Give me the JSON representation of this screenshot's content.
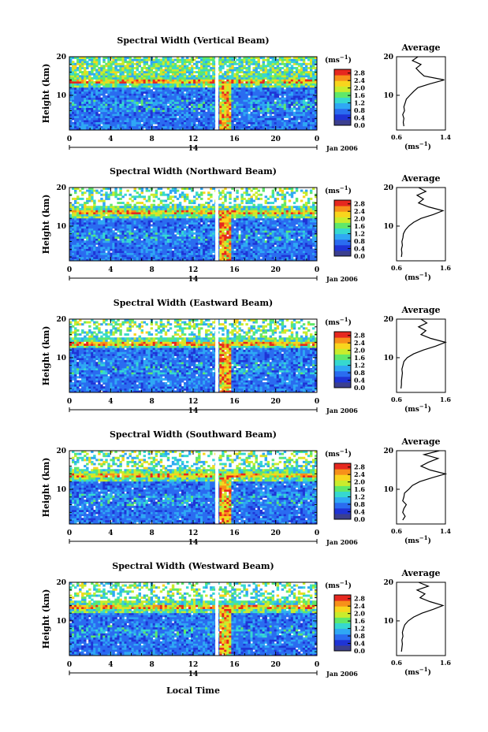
{
  "figure": {
    "xlabel": "Local Time",
    "date_label": "Jan 2006",
    "day_label": "14",
    "ylabel": "Height (km)",
    "colorbar_unit": "(ms",
    "colorbar_unit_sup": "−1",
    "profile_title": "Average",
    "profile_xunit": "(ms",
    "profile_xunit_sup": "−1",
    "profile_xunit_close": ")",
    "unit_close": ")"
  },
  "colorscale": {
    "ticks": [
      "0.0",
      "0.4",
      "0.8",
      "1.2",
      "1.6",
      "2.0",
      "2.4",
      "2.8"
    ],
    "colors": [
      "#3b3f8f",
      "#1f34d6",
      "#2a6cf0",
      "#2fa8f4",
      "#36d8d0",
      "#5fe86a",
      "#c9ec2c",
      "#f8d51d",
      "#f7901a",
      "#e6281f"
    ]
  },
  "chart_data": [
    {
      "type": "heatmap",
      "title": "Spectral Width (Vertical Beam)",
      "x_ticks": [
        "0",
        "4",
        "8",
        "12",
        "16",
        "20",
        "0"
      ],
      "xlim": [
        0,
        24
      ],
      "y_ticks": [
        "20",
        "10"
      ],
      "ylim": [
        1,
        20
      ],
      "z_unit": "ms-1",
      "zlim": [
        0.0,
        3.0
      ],
      "gap_hours": 14.3,
      "layer_km": 13.5,
      "profile": {
        "xticks": [
          "0.6",
          "1.4"
        ],
        "xlim": [
          0.6,
          1.4
        ],
        "points": [
          [
            0.72,
            2
          ],
          [
            0.71,
            3
          ],
          [
            0.72,
            4
          ],
          [
            0.7,
            5
          ],
          [
            0.73,
            6
          ],
          [
            0.72,
            7
          ],
          [
            0.74,
            8
          ],
          [
            0.76,
            9
          ],
          [
            0.82,
            10
          ],
          [
            0.88,
            11
          ],
          [
            0.95,
            12
          ],
          [
            1.15,
            13
          ],
          [
            1.38,
            14
          ],
          [
            1.05,
            15
          ],
          [
            0.98,
            16
          ],
          [
            0.92,
            17
          ],
          [
            1.0,
            18
          ],
          [
            0.86,
            19
          ],
          [
            0.95,
            20
          ]
        ]
      }
    },
    {
      "type": "heatmap",
      "title": "Spectral Width (Northward Beam)",
      "x_ticks": [
        "0",
        "4",
        "8",
        "12",
        "16",
        "20",
        "0"
      ],
      "xlim": [
        0,
        24
      ],
      "y_ticks": [
        "20",
        "10"
      ],
      "ylim": [
        1,
        20
      ],
      "z_unit": "ms-1",
      "zlim": [
        0.0,
        3.0
      ],
      "gap_hours": 14.3,
      "layer_km": 13.5,
      "profile": {
        "xticks": [
          "0.6",
          "1.6"
        ],
        "xlim": [
          0.6,
          1.6
        ],
        "points": [
          [
            0.7,
            2
          ],
          [
            0.71,
            3
          ],
          [
            0.7,
            4
          ],
          [
            0.72,
            5
          ],
          [
            0.71,
            6
          ],
          [
            0.73,
            7
          ],
          [
            0.74,
            8
          ],
          [
            0.78,
            9
          ],
          [
            0.85,
            10
          ],
          [
            0.95,
            11
          ],
          [
            1.1,
            12
          ],
          [
            1.35,
            13
          ],
          [
            1.55,
            14
          ],
          [
            1.25,
            15
          ],
          [
            1.05,
            16
          ],
          [
            1.15,
            17
          ],
          [
            1.02,
            18
          ],
          [
            1.2,
            19
          ],
          [
            1.05,
            20
          ]
        ]
      }
    },
    {
      "type": "heatmap",
      "title": "Spectral Width (Eastward Beam)",
      "x_ticks": [
        "0",
        "4",
        "8",
        "12",
        "16",
        "20",
        "0"
      ],
      "xlim": [
        0,
        24
      ],
      "y_ticks": [
        "20",
        "10"
      ],
      "ylim": [
        1,
        20
      ],
      "z_unit": "ms-1",
      "zlim": [
        0.0,
        3.0
      ],
      "gap_hours": 14.3,
      "layer_km": 13.8,
      "profile": {
        "xticks": [
          "0.6",
          "1.6"
        ],
        "xlim": [
          0.6,
          1.6
        ],
        "points": [
          [
            0.69,
            2
          ],
          [
            0.7,
            3
          ],
          [
            0.7,
            4
          ],
          [
            0.71,
            5
          ],
          [
            0.72,
            6
          ],
          [
            0.71,
            7
          ],
          [
            0.73,
            8
          ],
          [
            0.75,
            9
          ],
          [
            0.82,
            10
          ],
          [
            0.95,
            11
          ],
          [
            1.15,
            12
          ],
          [
            1.4,
            13
          ],
          [
            1.6,
            14
          ],
          [
            1.3,
            15
          ],
          [
            1.1,
            16
          ],
          [
            1.2,
            17
          ],
          [
            1.05,
            18
          ],
          [
            1.22,
            19
          ],
          [
            1.1,
            20
          ]
        ]
      }
    },
    {
      "type": "heatmap",
      "title": "Spectral Width (Southward Beam)",
      "x_ticks": [
        "0",
        "4",
        "8",
        "12",
        "16",
        "20",
        "0"
      ],
      "xlim": [
        0,
        24
      ],
      "y_ticks": [
        "20",
        "10"
      ],
      "ylim": [
        1,
        20
      ],
      "z_unit": "ms-1",
      "zlim": [
        0.0,
        3.0
      ],
      "gap_hours": 14.3,
      "layer_km": 13.6,
      "profile": {
        "xticks": [
          "0.6",
          "1.4"
        ],
        "xlim": [
          0.6,
          1.4
        ],
        "points": [
          [
            0.7,
            2
          ],
          [
            0.74,
            3
          ],
          [
            0.7,
            4
          ],
          [
            0.72,
            5
          ],
          [
            0.76,
            6
          ],
          [
            0.7,
            7
          ],
          [
            0.72,
            8
          ],
          [
            0.73,
            9
          ],
          [
            0.8,
            10
          ],
          [
            0.86,
            11
          ],
          [
            0.98,
            12
          ],
          [
            1.18,
            13
          ],
          [
            1.4,
            14
          ],
          [
            1.15,
            15
          ],
          [
            1.0,
            16
          ],
          [
            1.12,
            17
          ],
          [
            1.28,
            18
          ],
          [
            1.05,
            19
          ],
          [
            1.3,
            20
          ]
        ]
      }
    },
    {
      "type": "heatmap",
      "title": "Spectral Width (Westward Beam)",
      "x_ticks": [
        "0",
        "4",
        "8",
        "12",
        "16",
        "20",
        "0"
      ],
      "xlim": [
        0,
        24
      ],
      "y_ticks": [
        "20",
        "10"
      ],
      "ylim": [
        1,
        20
      ],
      "z_unit": "ms-1",
      "zlim": [
        0.0,
        3.0
      ],
      "gap_hours": 14.3,
      "layer_km": 13.6,
      "profile": {
        "xticks": [
          "0.6",
          "1.6"
        ],
        "xlim": [
          0.6,
          1.6
        ],
        "points": [
          [
            0.7,
            2
          ],
          [
            0.71,
            3
          ],
          [
            0.72,
            4
          ],
          [
            0.71,
            5
          ],
          [
            0.73,
            6
          ],
          [
            0.72,
            7
          ],
          [
            0.74,
            8
          ],
          [
            0.77,
            9
          ],
          [
            0.84,
            10
          ],
          [
            0.95,
            11
          ],
          [
            1.12,
            12
          ],
          [
            1.35,
            13
          ],
          [
            1.55,
            14
          ],
          [
            1.28,
            15
          ],
          [
            1.08,
            16
          ],
          [
            1.18,
            17
          ],
          [
            1.02,
            18
          ],
          [
            1.25,
            19
          ],
          [
            1.05,
            20
          ]
        ]
      }
    }
  ]
}
